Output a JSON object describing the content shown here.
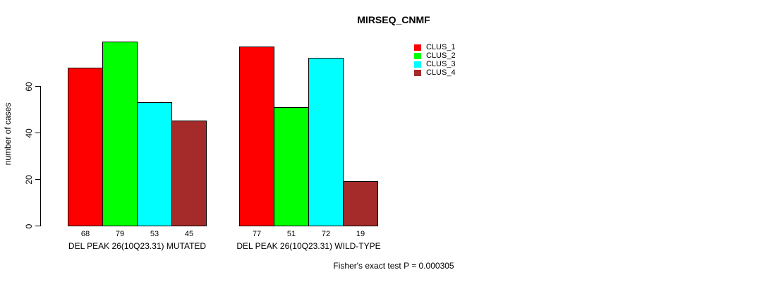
{
  "page": {
    "background": "#ffffff"
  },
  "chart_data": {
    "type": "bar",
    "title": "MIRSEQ_CNMF",
    "ylabel": "number of cases",
    "xlabel": "",
    "yticks": [
      0,
      20,
      40,
      60
    ],
    "ylim": [
      0,
      79
    ],
    "grid": false,
    "legend_position": "top-right",
    "show_value_labels": true,
    "categories": [
      "DEL PEAK 26(10Q23.31) MUTATED",
      "DEL PEAK 26(10Q23.31) WILD-TYPE"
    ],
    "series": [
      {
        "name": "CLUS_1",
        "color": "#ff0000",
        "values": [
          68,
          77
        ]
      },
      {
        "name": "CLUS_2",
        "color": "#00ff00",
        "values": [
          79,
          51
        ]
      },
      {
        "name": "CLUS_3",
        "color": "#00ffff",
        "values": [
          53,
          72
        ]
      },
      {
        "name": "CLUS_4",
        "color": "#a52a2a",
        "values": [
          45,
          19
        ]
      }
    ],
    "footnote": "Fisher's exact test P = 0.000305",
    "axis_color": "#000000",
    "text_color": "#000000"
  }
}
